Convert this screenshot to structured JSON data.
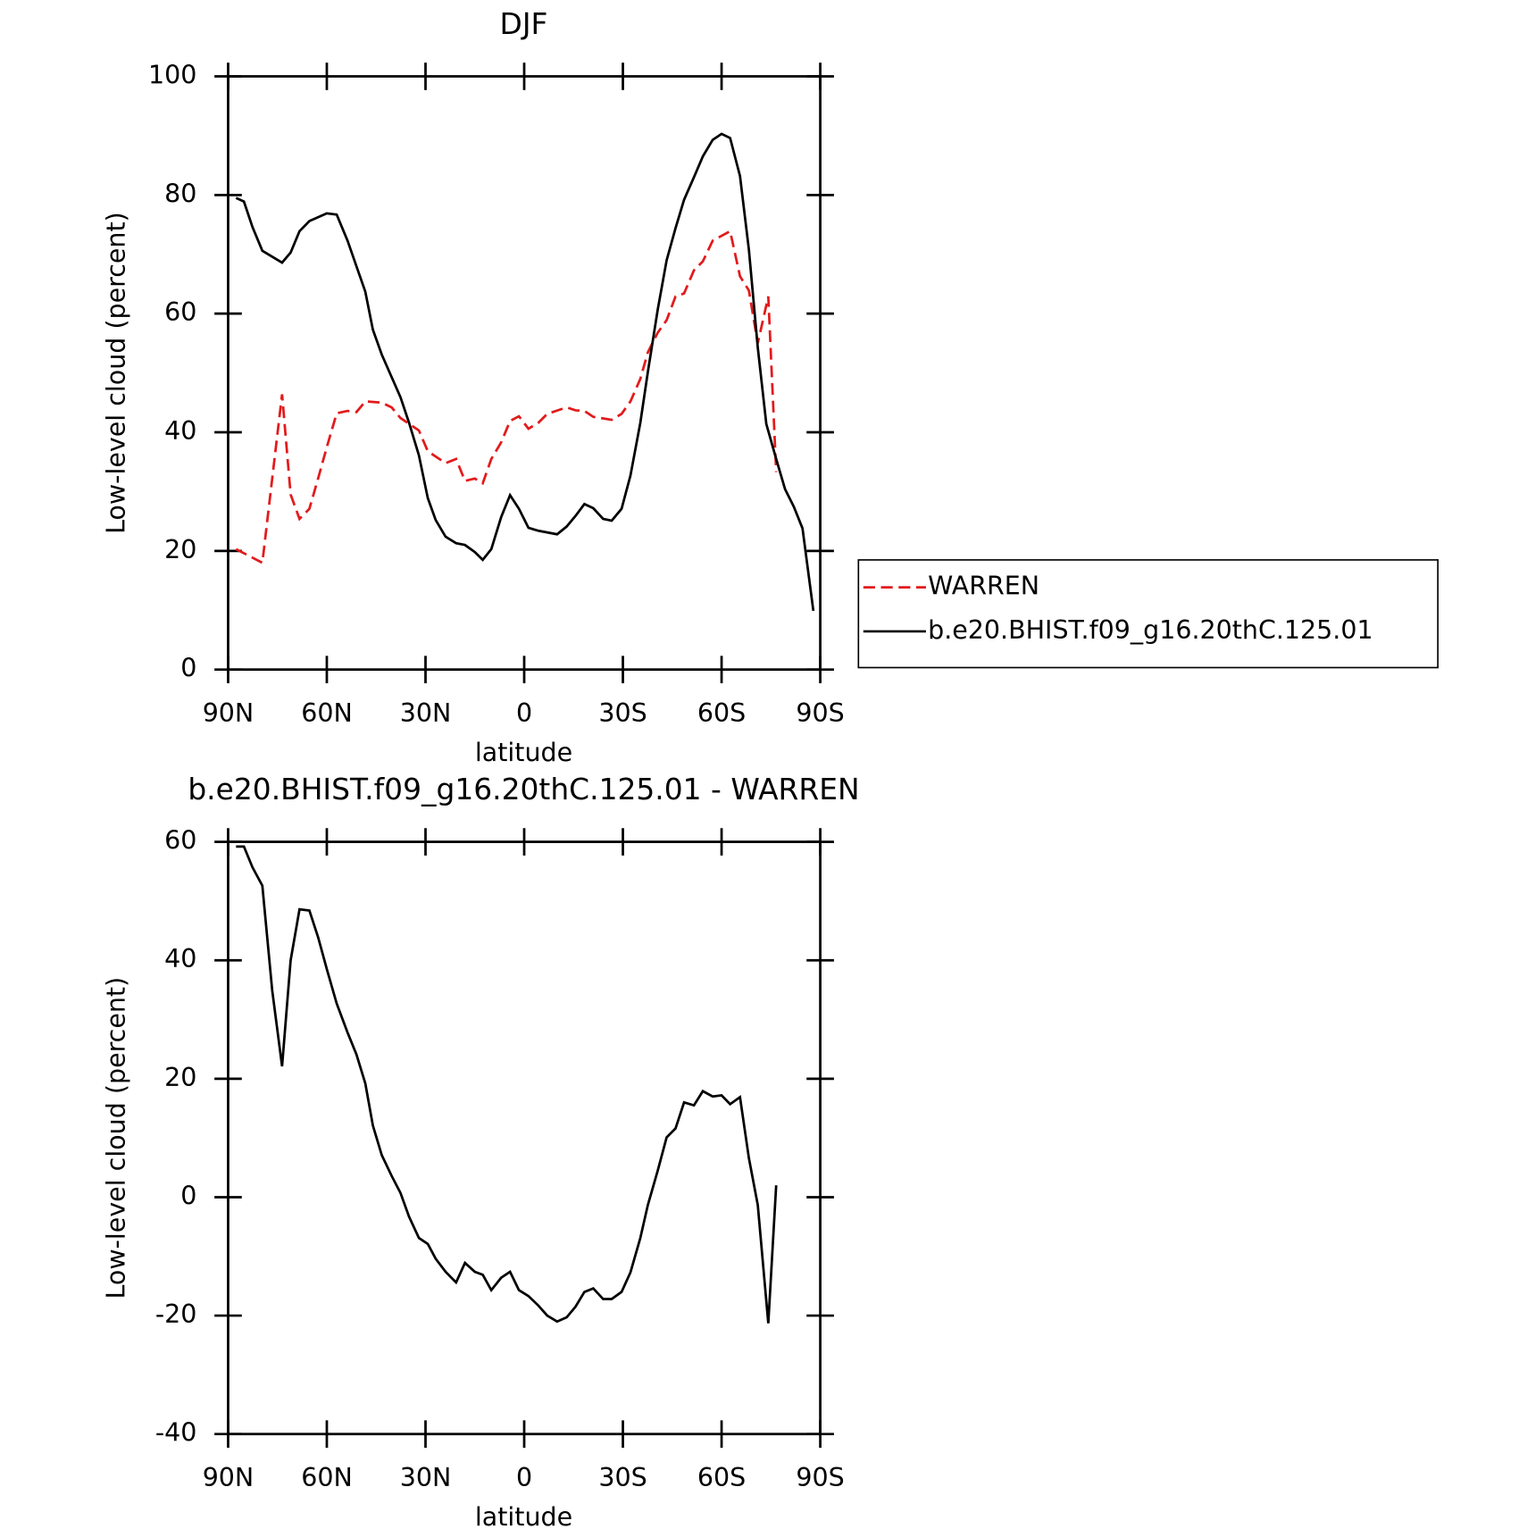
{
  "chart_data": [
    {
      "type": "line",
      "title": "DJF",
      "xlabel": "latitude",
      "ylabel": "Low-level cloud (percent)",
      "xlim": [
        90,
        -90
      ],
      "xticks": [
        {
          "value": 90,
          "label": "90N"
        },
        {
          "value": 60,
          "label": "60N"
        },
        {
          "value": 30,
          "label": "30N"
        },
        0,
        {
          "value": -30,
          "label": "30S"
        },
        {
          "value": -60,
          "label": "60S"
        },
        {
          "value": -90,
          "label": "90S"
        }
      ],
      "ylim": [
        0,
        100
      ],
      "yticks": [
        0,
        20,
        40,
        60,
        80,
        100
      ],
      "legend": "outside-right",
      "series": [
        {
          "name": "WARREN",
          "color": "#e31a1c",
          "linestyle": "dashed",
          "x": [
            87.6,
            79.6,
            73.6,
            71,
            68.3,
            65.3,
            62.6,
            60,
            57,
            53.7,
            51,
            48.3,
            43.3,
            40.3,
            37.6,
            32,
            29.3,
            23.9,
            20.7,
            18,
            15,
            12.6,
            10,
            7,
            4.3,
            1.6,
            -1.3,
            -4.3,
            -7,
            -12.9,
            -15.6,
            -18.3,
            -21,
            -26.6,
            -29.6,
            -32.3,
            -35.3,
            -37.6,
            -40.6,
            -43.3,
            -46,
            -48.6,
            -51.6,
            -54.3,
            -57.3,
            -62.6,
            -65.6,
            -68.3,
            -71,
            -74.2,
            -76.6
          ],
          "values": [
            20.3,
            18,
            46.4,
            29.5,
            25.4,
            27.1,
            32.3,
            37.5,
            43.2,
            43.6,
            43.4,
            45.2,
            45,
            44.2,
            42.4,
            40.3,
            36.8,
            34.8,
            35.5,
            31.8,
            32.2,
            31.4,
            35.5,
            38.3,
            41.9,
            42.7,
            40.6,
            41.6,
            43.1,
            44.2,
            43.7,
            43.6,
            42.6,
            42.1,
            43.1,
            45.2,
            49,
            53.5,
            56.8,
            58.9,
            62.9,
            63.4,
            67.3,
            68.8,
            72.3,
            73.9,
            66.3,
            63.9,
            55,
            62.9,
            33.3
          ]
        },
        {
          "name": "b.e20.BHIST.f09_g16.20thC.125.01",
          "color": "#000000",
          "linestyle": "solid",
          "x": [
            87.6,
            85.2,
            82.6,
            79.6,
            73.6,
            71,
            68.3,
            65.3,
            60,
            57,
            53.7,
            51,
            48.3,
            46,
            43.3,
            37.6,
            35,
            32,
            29.3,
            26.9,
            23.9,
            20.7,
            18,
            15,
            12.6,
            10,
            7,
            4.3,
            1.6,
            -1.3,
            -4.3,
            -10,
            -12.9,
            -15.6,
            -18.3,
            -21,
            -24,
            -26.6,
            -29.6,
            -32.3,
            -35.3,
            -37.6,
            -40.6,
            -43.3,
            -46,
            -48.6,
            -51.6,
            -54.3,
            -57.3,
            -60,
            -62.6,
            -65.6,
            -68.3,
            -71,
            -73.6,
            -76.6,
            -79.3,
            -82,
            -84.6,
            -87.9
          ],
          "values": [
            79.5,
            78.9,
            74.6,
            70.6,
            68.6,
            70.3,
            73.9,
            75.6,
            76.9,
            76.7,
            72.3,
            68,
            63.7,
            57.3,
            53.1,
            45.9,
            41.6,
            36.1,
            28.9,
            25.2,
            22.4,
            21.3,
            21,
            19.8,
            18.5,
            20.3,
            25.7,
            29.4,
            27.1,
            23.9,
            23.4,
            22.8,
            24.1,
            25.9,
            27.9,
            27.2,
            25.4,
            25.1,
            27.1,
            32.7,
            41.6,
            50.2,
            60.7,
            69,
            74.4,
            79.2,
            83,
            86.5,
            89.3,
            90.3,
            89.6,
            83.2,
            70.8,
            54.3,
            41.4,
            35.5,
            30.4,
            27.4,
            23.8,
            9.9
          ]
        }
      ]
    },
    {
      "type": "line",
      "title": "b.e20.BHIST.f09_g16.20thC.125.01 - WARREN",
      "xlabel": "latitude",
      "ylabel": "Low-level cloud (percent)",
      "xlim": [
        90,
        -90
      ],
      "xticks": [
        {
          "value": 90,
          "label": "90N"
        },
        {
          "value": 60,
          "label": "60N"
        },
        {
          "value": 30,
          "label": "30N"
        },
        0,
        {
          "value": -30,
          "label": "30S"
        },
        {
          "value": -60,
          "label": "60S"
        },
        {
          "value": -90,
          "label": "90S"
        }
      ],
      "ylim": [
        -40,
        60
      ],
      "yticks": [
        -40,
        -20,
        0,
        20,
        40,
        60
      ],
      "series": [
        {
          "color": "#000000",
          "linestyle": "solid",
          "x": [
            87.6,
            85.2,
            82.6,
            79.6,
            76.6,
            73.6,
            71,
            68.3,
            65.3,
            62.6,
            60,
            57,
            53.7,
            51,
            48.3,
            46,
            43.3,
            40.3,
            37.6,
            35,
            32,
            29.3,
            26.9,
            23.9,
            20.7,
            18,
            15,
            12.6,
            10,
            7,
            4.3,
            1.6,
            -1.3,
            -4.3,
            -7,
            -10,
            -12.9,
            -15.6,
            -18.3,
            -21,
            -24,
            -26.6,
            -29.6,
            -32.3,
            -35.3,
            -37.6,
            -40.6,
            -43.3,
            -46,
            -48.6,
            -51.6,
            -54.3,
            -57.3,
            -60,
            -62.6,
            -65.6,
            -68.3,
            -71,
            -74.2,
            -76.6
          ],
          "values": [
            59.2,
            59.2,
            55.7,
            52.6,
            34.9,
            22.1,
            40,
            48.6,
            48.4,
            43.8,
            38.5,
            32.7,
            27.8,
            24.1,
            19.2,
            12.1,
            7.1,
            3.6,
            0.7,
            -3.3,
            -6.9,
            -7.9,
            -10.4,
            -12.6,
            -14.4,
            -11.1,
            -12.6,
            -13.1,
            -15.7,
            -13.6,
            -12.6,
            -15.7,
            -16.7,
            -18.3,
            -20,
            -21,
            -20.3,
            -18.5,
            -16,
            -15.4,
            -17.2,
            -17.2,
            -16,
            -12.7,
            -6.9,
            -1.3,
            4.5,
            10.1,
            11.6,
            16,
            15.5,
            17.9,
            17,
            17.2,
            15.7,
            16.9,
            6.6,
            -1.3,
            -21.3,
            2
          ]
        }
      ]
    }
  ]
}
